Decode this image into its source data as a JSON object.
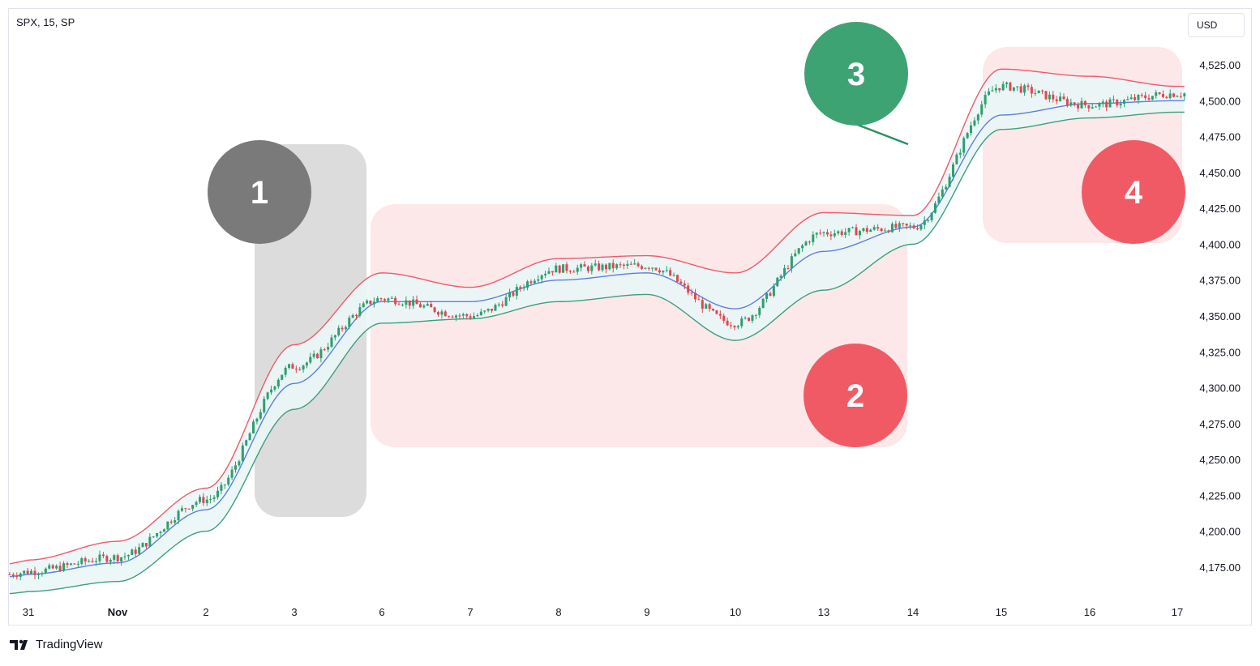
{
  "header": {
    "symbol_text": "SPX, 15, SP",
    "currency": "USD"
  },
  "footer": {
    "brand": "TradingView"
  },
  "colors": {
    "upper_band": "#f05a6a",
    "lower_band": "#3e9e80",
    "basis": "#5b7fe0",
    "band_fill": "#eaf6f7",
    "candle_up": "#2e9e6e",
    "candle_down": "#e0474f",
    "box_gray": "#d6d6d6",
    "box_pink": "#fbe3e5",
    "marker_gray": "#7a7a7a",
    "marker_green": "#3ea373",
    "marker_red": "#f05a65"
  },
  "markers": [
    {
      "label": "1",
      "color": "gray"
    },
    {
      "label": "2",
      "color": "red"
    },
    {
      "label": "3",
      "color": "green"
    },
    {
      "label": "4",
      "color": "red"
    }
  ],
  "chart_data": {
    "type": "line",
    "title": "SPX, 15, SP",
    "indicator": "Bollinger Bands",
    "ylim": [
      4155,
      4545
    ],
    "y_ticks": [
      "4,525.00",
      "4,500.00",
      "4,475.00",
      "4,450.00",
      "4,425.00",
      "4,400.00",
      "4,375.00",
      "4,350.00",
      "4,325.00",
      "4,300.00",
      "4,275.00",
      "4,250.00",
      "4,225.00",
      "4,200.00",
      "4,175.00"
    ],
    "x_ticks": [
      "31",
      "Nov",
      "2",
      "3",
      "6",
      "7",
      "8",
      "9",
      "10",
      "13",
      "14",
      "15",
      "16",
      "17"
    ],
    "x": [
      "31",
      "Nov",
      "2",
      "3",
      "6",
      "7",
      "8",
      "9",
      "10",
      "13",
      "14",
      "15",
      "16",
      "17"
    ],
    "series": [
      {
        "name": "Upper band",
        "values": [
          4180,
          4193,
          4230,
          4330,
          4380,
          4370,
          4390,
          4392,
          4380,
          4422,
          4420,
          4522,
          4517,
          4510
        ]
      },
      {
        "name": "Basis",
        "values": [
          4170,
          4178,
          4215,
          4303,
          4360,
          4360,
          4375,
          4380,
          4355,
          4395,
          4412,
          4490,
          4498,
          4500
        ]
      },
      {
        "name": "Lower band",
        "values": [
          4158,
          4165,
          4200,
          4285,
          4345,
          4348,
          4360,
          4365,
          4333,
          4368,
          4400,
          4480,
          4488,
          4492
        ]
      },
      {
        "name": "Price",
        "values": [
          4172,
          4182,
          4222,
          4315,
          4362,
          4350,
          4383,
          4385,
          4345,
          4408,
          4412,
          4510,
          4497,
          4505
        ]
      }
    ]
  }
}
